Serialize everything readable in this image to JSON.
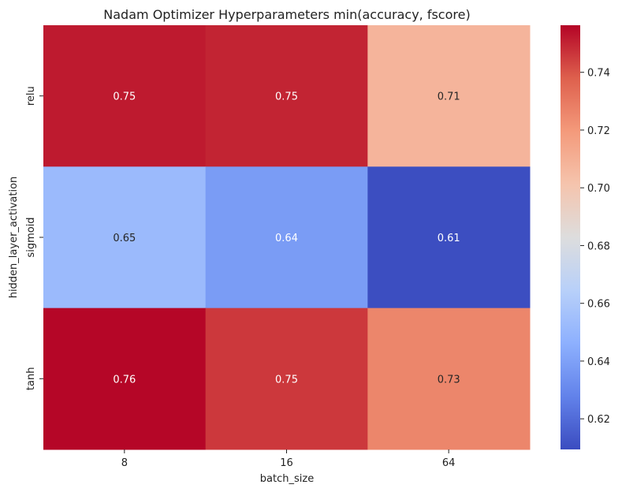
{
  "chart_data": {
    "type": "heatmap",
    "title": "Nadam Optimizer Hyperparameters min(accuracy, fscore)",
    "xlabel": "batch_size",
    "ylabel": "hidden_layer_activation",
    "x_categories": [
      "8",
      "16",
      "64"
    ],
    "y_categories": [
      "relu",
      "sigmoid",
      "tanh"
    ],
    "values": [
      [
        0.752,
        0.75,
        0.708
      ],
      [
        0.652,
        0.638,
        0.61
      ],
      [
        0.756,
        0.746,
        0.726
      ]
    ],
    "annotations": [
      [
        "0.75",
        "0.75",
        "0.71"
      ],
      [
        "0.65",
        "0.64",
        "0.61"
      ],
      [
        "0.76",
        "0.75",
        "0.73"
      ]
    ],
    "colormap": "coolwarm",
    "colorbar": {
      "range": [
        0.6094,
        0.7563
      ],
      "ticks": [
        0.62,
        0.64,
        0.66,
        0.68,
        0.7,
        0.72,
        0.74
      ],
      "tick_labels": [
        "0.62",
        "0.64",
        "0.66",
        "0.68",
        "0.70",
        "0.72",
        "0.74"
      ]
    }
  }
}
